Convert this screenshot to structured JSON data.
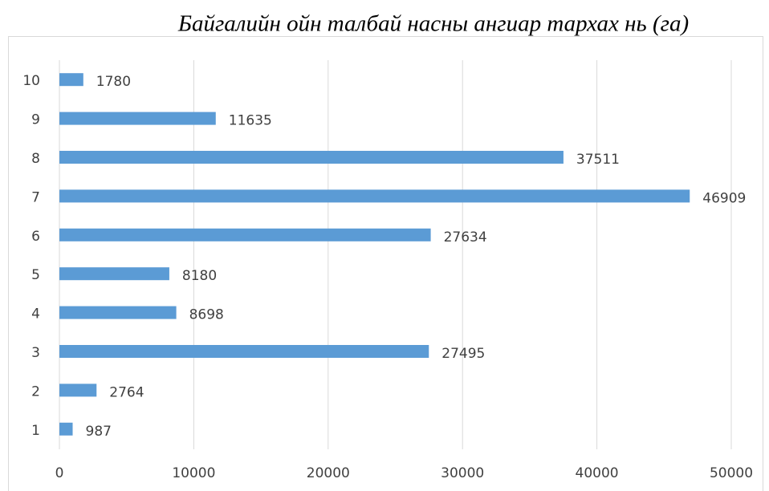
{
  "chart_data": {
    "type": "bar",
    "orientation": "horizontal",
    "title": "Байгалийн ойн талбай насны ангиар тархах нь (га)",
    "categories": [
      "1",
      "2",
      "3",
      "4",
      "5",
      "6",
      "7",
      "8",
      "9",
      "10"
    ],
    "values": [
      987,
      2764,
      27495,
      8698,
      8180,
      27634,
      46909,
      37511,
      11635,
      1780
    ],
    "color": "#5b9bd5",
    "xlim": [
      0,
      50000
    ],
    "xticks": [
      0,
      10000,
      20000,
      30000,
      40000,
      50000
    ],
    "grid": true
  }
}
